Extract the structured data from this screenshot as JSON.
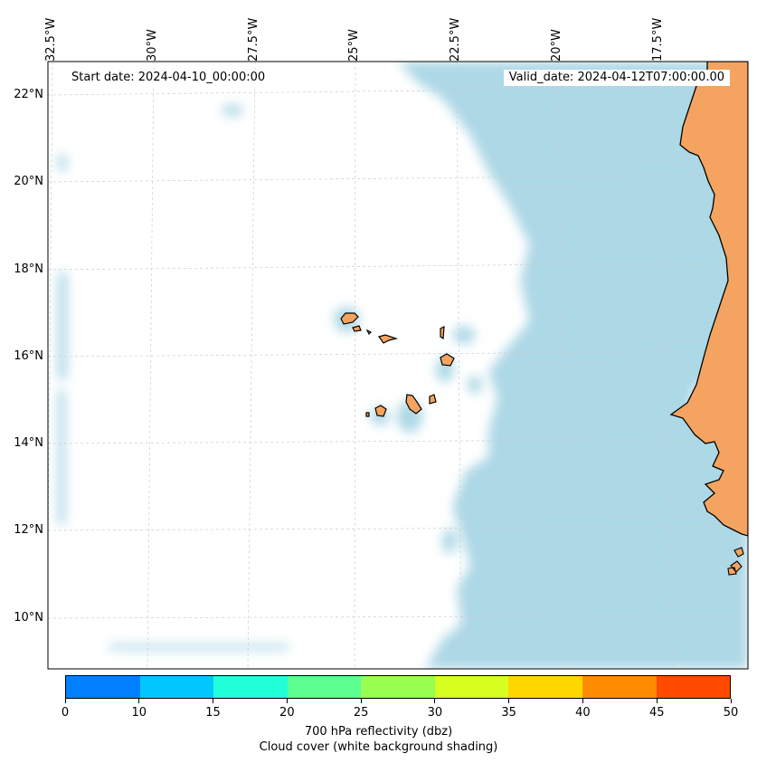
{
  "map": {
    "start_label": "Start date: 2024-04-10_00:00:00",
    "valid_label": "Valid_date: 2024-04-12T07:00:00.00",
    "lon_labels": [
      "32.5°W",
      "30°W",
      "27.5°W",
      "25°W",
      "22.5°W",
      "20°W",
      "17.5°W"
    ],
    "lat_labels": [
      "22°N",
      "20°N",
      "18°N",
      "16°N",
      "14°N",
      "12°N",
      "10°N"
    ],
    "land_color": "#f4a460",
    "cloud_color": "#add8e6",
    "ocean_color": "#ffffff"
  },
  "colorbar": {
    "tick_labels": [
      "0",
      "10",
      "15",
      "20",
      "25",
      "30",
      "35",
      "40",
      "45",
      "50"
    ],
    "colors": [
      "#0080ff",
      "#00c8ff",
      "#20ffd8",
      "#5dff90",
      "#98ff50",
      "#d7ff20",
      "#ffd700",
      "#ff8c00",
      "#ff4a00"
    ],
    "title": "700 hPa reflectivity (dbz)",
    "subtitle": "Cloud cover (white background shading)"
  }
}
